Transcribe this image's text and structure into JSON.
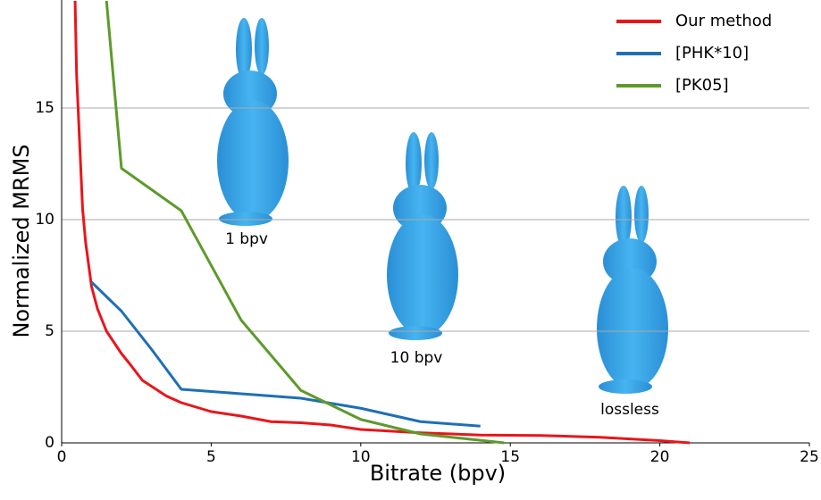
{
  "chart_data": {
    "type": "line",
    "xlabel": "Bitrate (bpv)",
    "ylabel": "Normalized MRMS",
    "xlim": [
      0,
      25
    ],
    "ylim": [
      0,
      19.84
    ],
    "xticks": [
      0,
      5,
      10,
      15,
      20,
      25
    ],
    "yticks": [
      0,
      5,
      10,
      15
    ],
    "grid": true,
    "legend": "upper right",
    "annotations": [
      "1 bpv",
      "10 bpv",
      "lossless"
    ],
    "series": [
      {
        "name": "Our method",
        "color": "#e8161b",
        "x": [
          0.45,
          0.5,
          0.6,
          0.7,
          0.8,
          1,
          1.2,
          1.5,
          2,
          2.3,
          2.7,
          3.5,
          4,
          5,
          6,
          7,
          8,
          9,
          10,
          12,
          14,
          16,
          18,
          20,
          21
        ],
        "values": [
          19.8,
          16.5,
          13.5,
          10.5,
          9,
          7,
          6,
          5,
          4,
          3.5,
          2.8,
          2.1,
          1.8,
          1.4,
          1.2,
          0.95,
          0.9,
          0.8,
          0.6,
          0.45,
          0.35,
          0.33,
          0.25,
          0.1,
          0
        ]
      },
      {
        "name": "[PHK*10]",
        "color": "#1f6fb5",
        "x": [
          1,
          2,
          3,
          4,
          6,
          8,
          10,
          12,
          14
        ],
        "values": [
          7.2,
          5.9,
          4.2,
          2.4,
          2.2,
          2,
          1.55,
          0.95,
          0.75
        ]
      },
      {
        "name": "[PK05]",
        "color": "#5d9a2b",
        "x": [
          1.5,
          2,
          4,
          6,
          8,
          10,
          12,
          14.8
        ],
        "values": [
          19.8,
          12.3,
          10.4,
          5.5,
          2.35,
          1.05,
          0.4,
          0
        ]
      }
    ]
  }
}
